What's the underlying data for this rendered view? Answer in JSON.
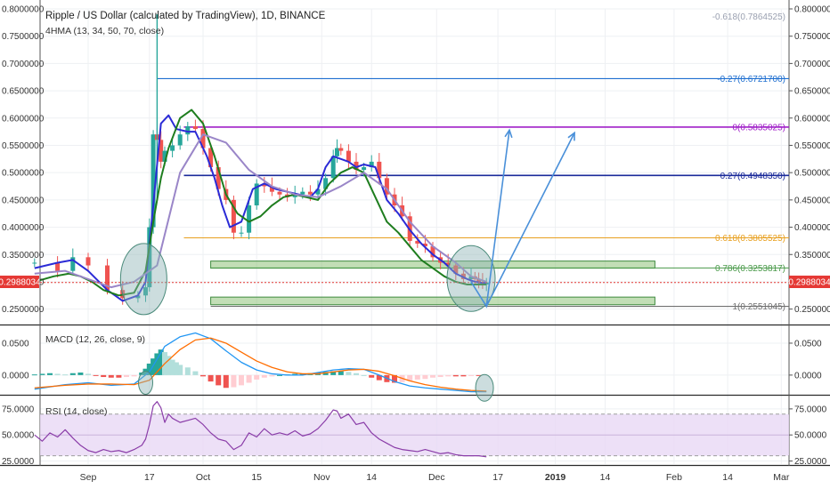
{
  "header": {
    "title": "Ripple / US Dollar (calculated by TradingView), 1D, BINANCE",
    "indicator": "4HMA (13, 34, 50, 70, close)"
  },
  "price_label": "0.2988034",
  "chart_data": [
    {
      "type": "candlestick",
      "panel": "price",
      "title": "Ripple / US Dollar (calculated by TradingView), 1D, BINANCE",
      "ylim": [
        0.225,
        0.8
      ],
      "y_ticks": [
        "0.8000000",
        "0.7500000",
        "0.7000000",
        "0.6500000",
        "0.6000000",
        "0.5500000",
        "0.5000000",
        "0.4500000",
        "0.4000000",
        "0.3500000",
        "0.3000000",
        "0.2500000"
      ],
      "y_tick_values": [
        0.8,
        0.75,
        0.7,
        0.65,
        0.6,
        0.55,
        0.5,
        0.45,
        0.4,
        0.35,
        0.3,
        0.25
      ],
      "x_ticks": [
        "Sep",
        "17",
        "Oct",
        "15",
        "Nov",
        "14",
        "Dec",
        "17",
        "2019",
        "14",
        "Feb",
        "14",
        "Mar"
      ],
      "x_tick_days": [
        0,
        16,
        30,
        44,
        61,
        74,
        91,
        107,
        122,
        135,
        153,
        167,
        181
      ],
      "x_start": "2018-09-01",
      "last_price": 0.2988034,
      "series": [
        {
          "name": "close",
          "x": [
            -14,
            -8,
            -4,
            0,
            5,
            9,
            13,
            15,
            16,
            17,
            18,
            19,
            20,
            22,
            24,
            26,
            28,
            30,
            32,
            34,
            36,
            38,
            40,
            42,
            44,
            46,
            48,
            50,
            52,
            54,
            56,
            58,
            60,
            62,
            64,
            65,
            66,
            68,
            70,
            72,
            74,
            76,
            78,
            80,
            82,
            84,
            86,
            88,
            90,
            92,
            94,
            96,
            98,
            100,
            101,
            102,
            103,
            104
          ],
          "values": [
            0.335,
            0.32,
            0.345,
            0.33,
            0.285,
            0.27,
            0.275,
            0.29,
            0.4,
            0.57,
            0.56,
            0.52,
            0.54,
            0.55,
            0.57,
            0.585,
            0.58,
            0.545,
            0.51,
            0.47,
            0.45,
            0.39,
            0.39,
            0.44,
            0.48,
            0.475,
            0.465,
            0.46,
            0.455,
            0.46,
            0.465,
            0.46,
            0.47,
            0.49,
            0.53,
            0.545,
            0.54,
            0.52,
            0.505,
            0.51,
            0.52,
            0.49,
            0.46,
            0.44,
            0.42,
            0.375,
            0.37,
            0.365,
            0.345,
            0.335,
            0.33,
            0.315,
            0.305,
            0.31,
            0.305,
            0.3,
            0.295,
            0.299
          ]
        }
      ],
      "ma_lines": [
        {
          "name": "HMA 13",
          "color": "#2b2bd6",
          "x": [
            -14,
            -8,
            -4,
            0,
            5,
            9,
            13,
            15,
            17,
            19,
            21,
            23,
            26,
            28,
            31,
            33,
            35,
            37,
            40,
            43,
            46,
            49,
            52,
            55,
            58,
            60,
            62,
            64,
            66,
            68,
            70,
            72,
            75,
            78,
            81,
            84,
            87,
            90,
            93,
            96,
            99,
            101,
            103,
            104
          ],
          "values": [
            0.325,
            0.335,
            0.34,
            0.32,
            0.285,
            0.265,
            0.275,
            0.3,
            0.44,
            0.59,
            0.605,
            0.58,
            0.575,
            0.575,
            0.53,
            0.49,
            0.44,
            0.4,
            0.41,
            0.47,
            0.48,
            0.47,
            0.465,
            0.46,
            0.455,
            0.47,
            0.51,
            0.53,
            0.525,
            0.52,
            0.51,
            0.515,
            0.51,
            0.45,
            0.425,
            0.395,
            0.37,
            0.35,
            0.335,
            0.315,
            0.305,
            0.3,
            0.298,
            0.298
          ]
        },
        {
          "name": "HMA 34",
          "color": "#1e7d1e",
          "x": [
            -14,
            -9,
            -5,
            -2,
            1,
            4,
            8,
            12,
            15,
            17,
            19,
            21,
            24,
            27,
            30,
            33,
            36,
            39,
            42,
            45,
            48,
            51,
            54,
            57,
            60,
            63,
            66,
            69,
            72,
            75,
            78,
            81,
            84,
            87,
            90,
            93,
            96,
            99,
            102,
            104
          ],
          "values": [
            0.3,
            0.31,
            0.315,
            0.31,
            0.3,
            0.285,
            0.275,
            0.28,
            0.32,
            0.41,
            0.49,
            0.545,
            0.6,
            0.615,
            0.59,
            0.53,
            0.46,
            0.425,
            0.41,
            0.42,
            0.44,
            0.455,
            0.46,
            0.455,
            0.45,
            0.48,
            0.5,
            0.51,
            0.5,
            0.455,
            0.41,
            0.39,
            0.365,
            0.34,
            0.325,
            0.31,
            0.3,
            0.295,
            0.295,
            0.295
          ]
        },
        {
          "name": "HMA 70",
          "color": "#9a86c8",
          "x": [
            -14,
            -6,
            0,
            6,
            12,
            18,
            24,
            30,
            36,
            42,
            48,
            54,
            60,
            66,
            72,
            78,
            84,
            90,
            96,
            100,
            104
          ],
          "values": [
            0.315,
            0.32,
            0.305,
            0.29,
            0.3,
            0.33,
            0.5,
            0.57,
            0.555,
            0.505,
            0.475,
            0.46,
            0.455,
            0.475,
            0.5,
            0.47,
            0.41,
            0.365,
            0.335,
            0.31,
            0.3
          ]
        }
      ],
      "annotations": [
        {
          "label": "-0.618(0.7864525)",
          "price": 0.7864525,
          "color": "#9aa0b0"
        },
        {
          "label": "-0.27(0.6721700)",
          "price": 0.67217,
          "color": "#1f6fd0"
        },
        {
          "label": "0(0.5835025)",
          "price": 0.5835025,
          "color": "#a020c8"
        },
        {
          "label": "0.27(0.4948350)",
          "price": 0.494835,
          "color": "#1a2a9a"
        },
        {
          "label": "0.618(0.3805525)",
          "price": 0.3805525,
          "color": "#e8a020"
        },
        {
          "label": "0.786(0.3253817)",
          "price": 0.3253817,
          "color": "#4a9a4a"
        },
        {
          "label": "1(0.2551045)",
          "price": 0.2551045,
          "color": "#707070"
        }
      ]
    },
    {
      "type": "bar",
      "panel": "macd",
      "title": "MACD (12, 26, close, 9)",
      "ylim": [
        -0.028,
        0.075
      ],
      "y_ticks": [
        "0.0500",
        "0.0000"
      ],
      "y_tick_values": [
        0.05,
        0.0
      ],
      "histogram": {
        "x": [
          -14,
          -12,
          -10,
          -8,
          -6,
          -4,
          -2,
          0,
          2,
          4,
          6,
          8,
          10,
          12,
          14,
          15,
          16,
          17,
          18,
          19,
          20,
          21,
          22,
          23,
          24,
          26,
          28,
          30,
          32,
          34,
          36,
          38,
          40,
          42,
          44,
          46,
          48,
          50,
          52,
          54,
          56,
          58,
          60,
          62,
          64,
          66,
          68,
          70,
          72,
          74,
          76,
          78,
          80,
          82,
          84,
          86,
          88,
          90,
          92,
          94,
          96,
          98,
          100,
          102
        ],
        "values": [
          0.001,
          0.002,
          0.003,
          0.002,
          0.001,
          0.003,
          0.004,
          0.002,
          -0.001,
          -0.003,
          -0.004,
          -0.004,
          -0.003,
          -0.002,
          0.004,
          0.01,
          0.018,
          0.026,
          0.034,
          0.04,
          0.036,
          0.03,
          0.024,
          0.02,
          0.016,
          0.012,
          0.006,
          -0.002,
          -0.01,
          -0.016,
          -0.02,
          -0.019,
          -0.016,
          -0.012,
          -0.007,
          -0.004,
          -0.002,
          0.0,
          0.001,
          0.002,
          0.002,
          0.003,
          0.004,
          0.005,
          0.006,
          0.006,
          0.005,
          0.003,
          0.0,
          -0.004,
          -0.008,
          -0.011,
          -0.012,
          -0.011,
          -0.009,
          -0.007,
          -0.006,
          -0.004,
          -0.003,
          -0.002,
          -0.002,
          -0.002,
          -0.001,
          -0.001
        ]
      },
      "series": [
        {
          "name": "MACD",
          "color": "#2196f3",
          "x": [
            -14,
            -6,
            0,
            6,
            12,
            16,
            20,
            24,
            28,
            32,
            36,
            40,
            44,
            48,
            52,
            56,
            60,
            64,
            68,
            72,
            76,
            80,
            84,
            88,
            92,
            96,
            100,
            104
          ],
          "values": [
            -0.022,
            -0.015,
            -0.012,
            -0.016,
            -0.014,
            0.005,
            0.045,
            0.06,
            0.066,
            0.057,
            0.038,
            0.02,
            0.008,
            0.002,
            0.0,
            0.0,
            0.004,
            0.008,
            0.01,
            0.009,
            0.0,
            -0.01,
            -0.017,
            -0.02,
            -0.022,
            -0.024,
            -0.026,
            -0.026
          ]
        },
        {
          "name": "Signal",
          "color": "#ff6d00",
          "x": [
            -14,
            -6,
            0,
            6,
            12,
            16,
            20,
            24,
            28,
            32,
            36,
            40,
            44,
            48,
            52,
            56,
            60,
            64,
            68,
            72,
            76,
            80,
            84,
            88,
            92,
            96,
            100,
            104
          ],
          "values": [
            -0.02,
            -0.016,
            -0.014,
            -0.014,
            -0.015,
            -0.008,
            0.018,
            0.04,
            0.055,
            0.058,
            0.05,
            0.036,
            0.022,
            0.012,
            0.005,
            0.002,
            0.002,
            0.005,
            0.008,
            0.009,
            0.006,
            -0.001,
            -0.009,
            -0.015,
            -0.019,
            -0.022,
            -0.024,
            -0.025
          ]
        }
      ]
    },
    {
      "type": "line",
      "panel": "rsi",
      "title": "RSI (14, close)",
      "ylim": [
        22,
        86
      ],
      "y_ticks": [
        "75.0000",
        "50.0000",
        "25.0000"
      ],
      "y_tick_values": [
        75,
        50,
        25
      ],
      "band": [
        30,
        70
      ],
      "series": [
        {
          "name": "RSI",
          "color": "#8a3ca8",
          "x": [
            -14,
            -12,
            -10,
            -8,
            -6,
            -4,
            -2,
            0,
            2,
            4,
            6,
            8,
            10,
            12,
            14,
            15,
            16,
            17,
            18,
            19,
            20,
            21,
            22,
            24,
            26,
            28,
            30,
            32,
            34,
            36,
            38,
            40,
            42,
            44,
            46,
            48,
            50,
            52,
            54,
            56,
            58,
            60,
            62,
            64,
            65,
            66,
            68,
            70,
            72,
            74,
            76,
            78,
            80,
            82,
            84,
            86,
            88,
            90,
            92,
            94,
            96,
            98,
            100,
            102,
            104
          ],
          "values": [
            50,
            44,
            52,
            48,
            55,
            47,
            40,
            35,
            33,
            36,
            34,
            35,
            33,
            36,
            40,
            46,
            60,
            78,
            82,
            76,
            62,
            70,
            66,
            62,
            64,
            66,
            60,
            52,
            46,
            44,
            36,
            40,
            52,
            48,
            56,
            50,
            52,
            50,
            54,
            49,
            51,
            56,
            64,
            74,
            73,
            66,
            70,
            60,
            62,
            52,
            46,
            42,
            38,
            36,
            35,
            34,
            36,
            34,
            32,
            33,
            31,
            30,
            30,
            30,
            29
          ]
        }
      ]
    }
  ]
}
